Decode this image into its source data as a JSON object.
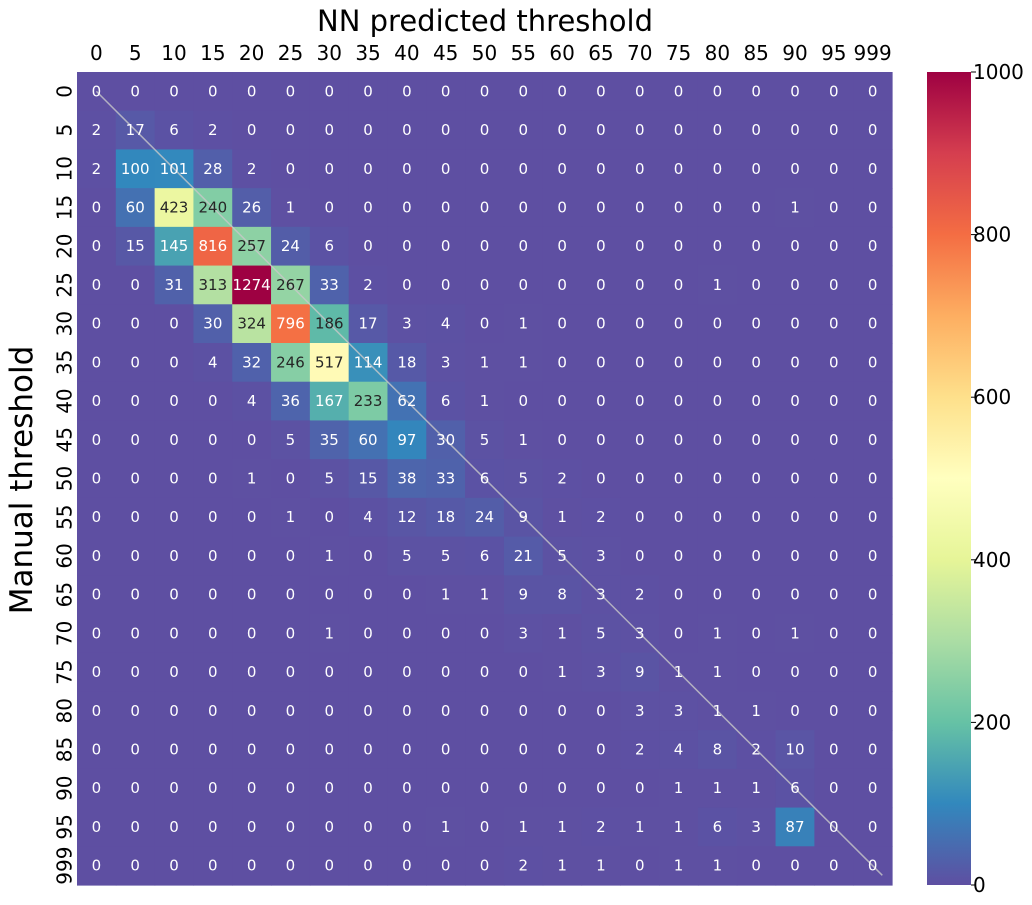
{
  "chart_data": {
    "type": "heatmap",
    "title": "NN predicted threshold",
    "xlabel": "",
    "ylabel": "Manual threshold",
    "x_categories": [
      "0",
      "5",
      "10",
      "15",
      "20",
      "25",
      "30",
      "35",
      "40",
      "45",
      "50",
      "55",
      "60",
      "65",
      "70",
      "75",
      "80",
      "85",
      "90",
      "95",
      "999"
    ],
    "y_categories": [
      "0",
      "5",
      "10",
      "15",
      "20",
      "25",
      "30",
      "35",
      "40",
      "45",
      "50",
      "55",
      "60",
      "65",
      "70",
      "75",
      "80",
      "85",
      "90",
      "95",
      "999"
    ],
    "values": [
      [
        0,
        0,
        0,
        0,
        0,
        0,
        0,
        0,
        0,
        0,
        0,
        0,
        0,
        0,
        0,
        0,
        0,
        0,
        0,
        0,
        0
      ],
      [
        2,
        17,
        6,
        2,
        0,
        0,
        0,
        0,
        0,
        0,
        0,
        0,
        0,
        0,
        0,
        0,
        0,
        0,
        0,
        0,
        0
      ],
      [
        2,
        100,
        101,
        28,
        2,
        0,
        0,
        0,
        0,
        0,
        0,
        0,
        0,
        0,
        0,
        0,
        0,
        0,
        0,
        0,
        0
      ],
      [
        0,
        60,
        423,
        240,
        26,
        1,
        0,
        0,
        0,
        0,
        0,
        0,
        0,
        0,
        0,
        0,
        0,
        0,
        1,
        0,
        0
      ],
      [
        0,
        15,
        145,
        816,
        257,
        24,
        6,
        0,
        0,
        0,
        0,
        0,
        0,
        0,
        0,
        0,
        0,
        0,
        0,
        0,
        0
      ],
      [
        0,
        0,
        31,
        313,
        1274,
        267,
        33,
        2,
        0,
        0,
        0,
        0,
        0,
        0,
        0,
        0,
        1,
        0,
        0,
        0,
        0
      ],
      [
        0,
        0,
        0,
        30,
        324,
        796,
        186,
        17,
        3,
        4,
        0,
        1,
        0,
        0,
        0,
        0,
        0,
        0,
        0,
        0,
        0
      ],
      [
        0,
        0,
        0,
        4,
        32,
        246,
        517,
        114,
        18,
        3,
        1,
        1,
        0,
        0,
        0,
        0,
        0,
        0,
        0,
        0,
        0
      ],
      [
        0,
        0,
        0,
        0,
        4,
        36,
        167,
        233,
        62,
        6,
        1,
        0,
        0,
        0,
        0,
        0,
        0,
        0,
        0,
        0,
        0
      ],
      [
        0,
        0,
        0,
        0,
        0,
        5,
        35,
        60,
        97,
        30,
        5,
        1,
        0,
        0,
        0,
        0,
        0,
        0,
        0,
        0,
        0
      ],
      [
        0,
        0,
        0,
        0,
        1,
        0,
        5,
        15,
        38,
        33,
        6,
        5,
        2,
        0,
        0,
        0,
        0,
        0,
        0,
        0,
        0
      ],
      [
        0,
        0,
        0,
        0,
        0,
        1,
        0,
        4,
        12,
        18,
        24,
        9,
        1,
        2,
        0,
        0,
        0,
        0,
        0,
        0,
        0
      ],
      [
        0,
        0,
        0,
        0,
        0,
        0,
        1,
        0,
        5,
        5,
        6,
        21,
        5,
        3,
        0,
        0,
        0,
        0,
        0,
        0,
        0
      ],
      [
        0,
        0,
        0,
        0,
        0,
        0,
        0,
        0,
        0,
        1,
        1,
        9,
        8,
        3,
        2,
        0,
        0,
        0,
        0,
        0,
        0
      ],
      [
        0,
        0,
        0,
        0,
        0,
        0,
        1,
        0,
        0,
        0,
        0,
        3,
        1,
        5,
        3,
        0,
        1,
        0,
        1,
        0,
        0
      ],
      [
        0,
        0,
        0,
        0,
        0,
        0,
        0,
        0,
        0,
        0,
        0,
        0,
        1,
        3,
        9,
        1,
        1,
        0,
        0,
        0,
        0
      ],
      [
        0,
        0,
        0,
        0,
        0,
        0,
        0,
        0,
        0,
        0,
        0,
        0,
        0,
        0,
        3,
        3,
        1,
        1,
        0,
        0,
        0
      ],
      [
        0,
        0,
        0,
        0,
        0,
        0,
        0,
        0,
        0,
        0,
        0,
        0,
        0,
        0,
        2,
        4,
        8,
        2,
        10,
        0,
        0
      ],
      [
        0,
        0,
        0,
        0,
        0,
        0,
        0,
        0,
        0,
        0,
        0,
        0,
        0,
        0,
        0,
        1,
        1,
        1,
        6,
        0,
        0
      ],
      [
        0,
        0,
        0,
        0,
        0,
        0,
        0,
        0,
        0,
        1,
        0,
        1,
        1,
        2,
        1,
        1,
        6,
        3,
        87,
        0,
        0
      ],
      [
        0,
        0,
        0,
        0,
        0,
        0,
        0,
        0,
        0,
        0,
        0,
        2,
        1,
        1,
        0,
        1,
        1,
        0,
        0,
        0,
        0
      ]
    ],
    "colorscale": {
      "name": "Spectral_r",
      "vmin": 0,
      "vmax": 1000,
      "stops": [
        "#5e4fa2",
        "#3288bd",
        "#66c2a5",
        "#abdda4",
        "#e6f598",
        "#ffffbf",
        "#fee08b",
        "#fdae61",
        "#f46d43",
        "#d53e4f",
        "#9e0142"
      ],
      "ticks": [
        "0",
        "200",
        "400",
        "600",
        "800",
        "1000"
      ]
    },
    "diagonal_line": true,
    "x_axis_position": "top",
    "grid": false
  }
}
